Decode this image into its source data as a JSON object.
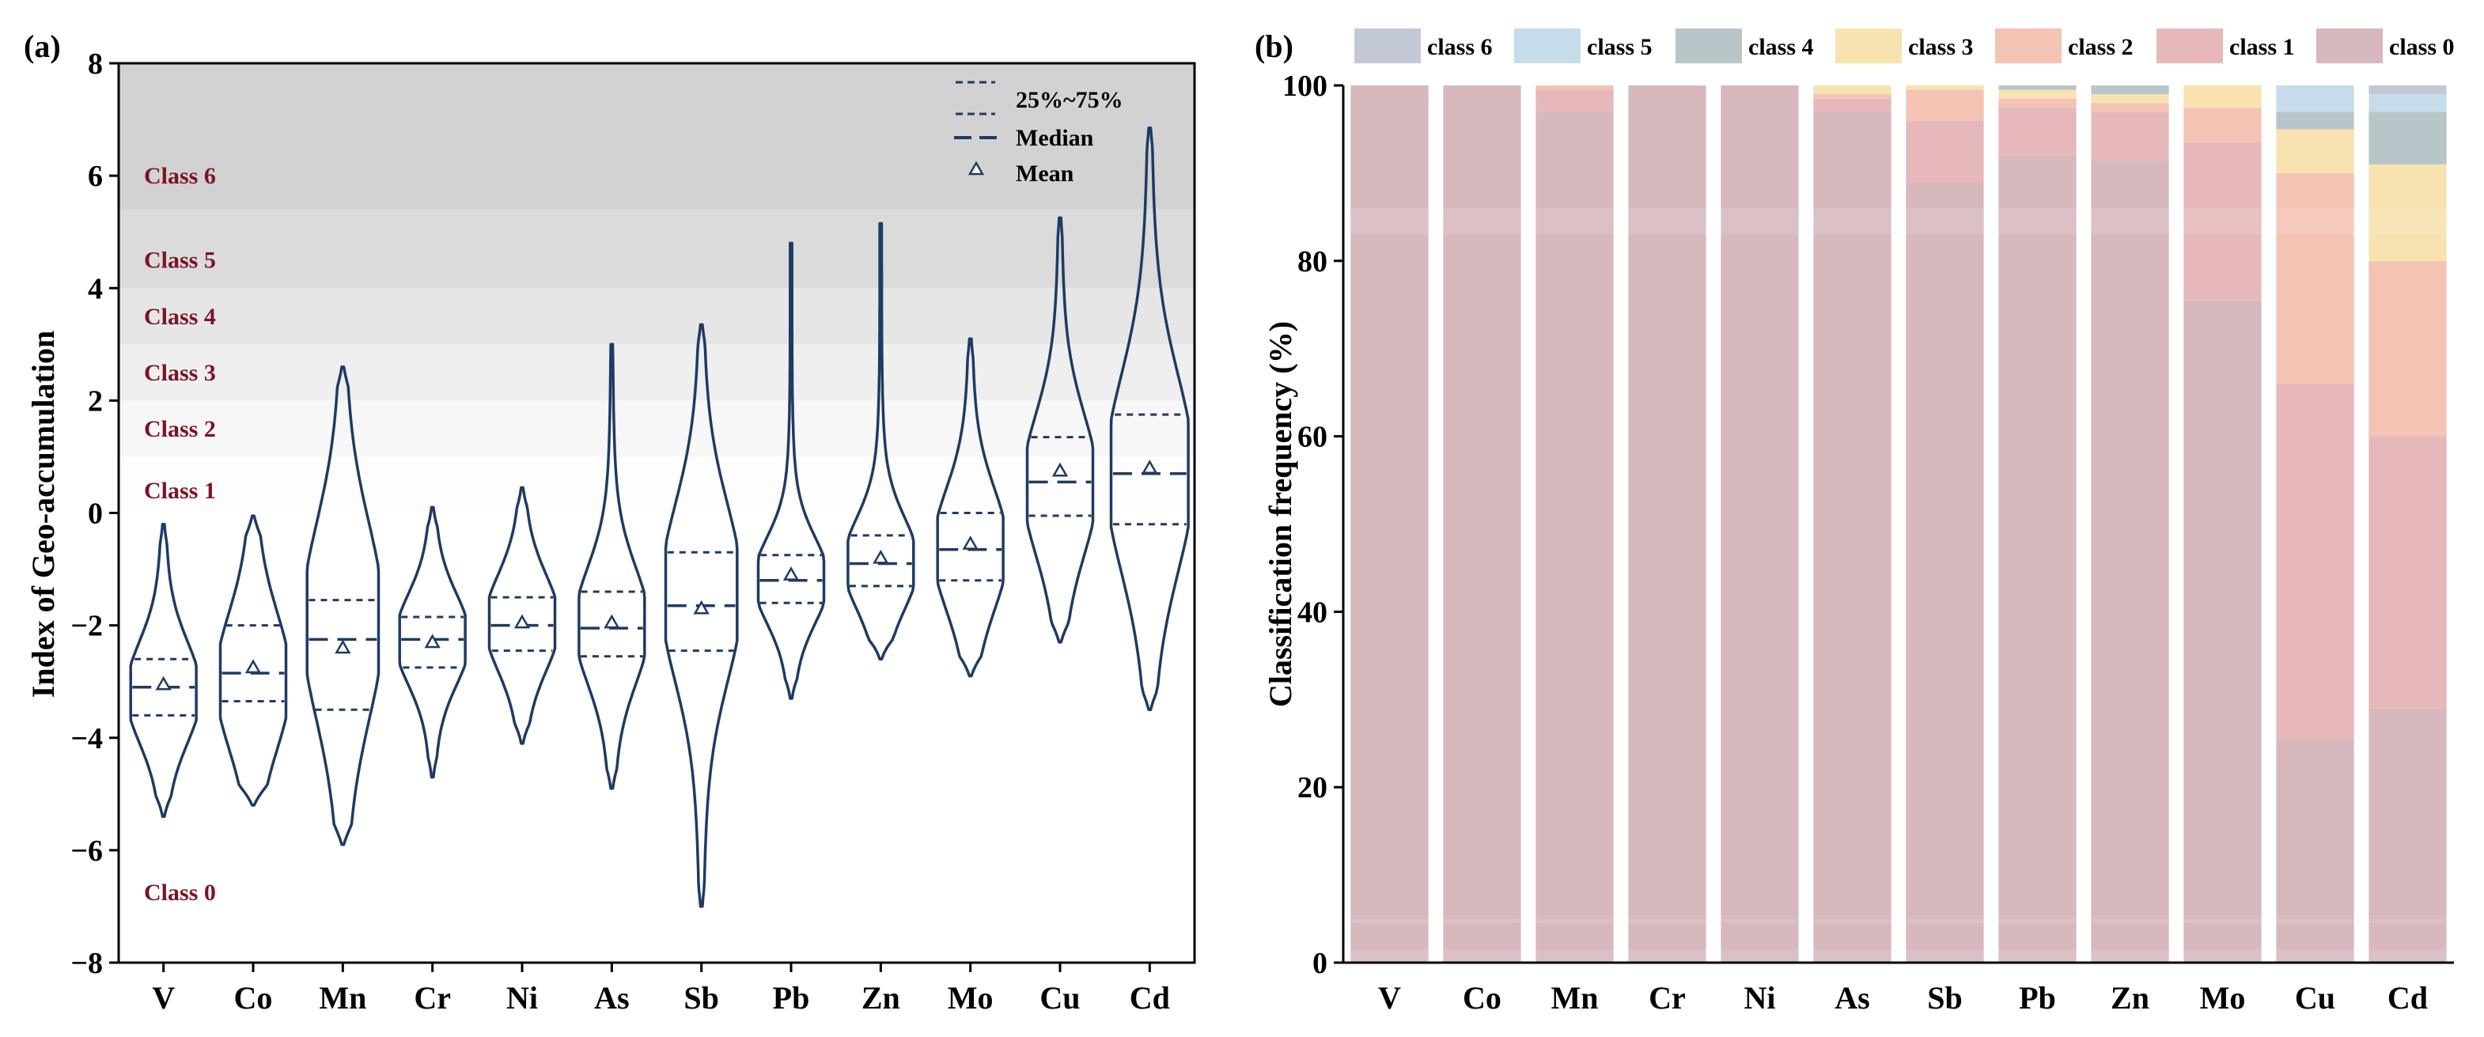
{
  "chart_data": [
    {
      "panel": "(a)",
      "type": "violin",
      "ylabel": "Index of Geo-accumulation",
      "ylim": [
        -8,
        8
      ],
      "yticks": [
        "−8",
        "−6",
        "−4",
        "−2",
        "0",
        "2",
        "4",
        "6",
        "8"
      ],
      "ytick_values": [
        -8,
        -6,
        -4,
        -2,
        0,
        2,
        4,
        6,
        8
      ],
      "legend": {
        "quartile": "25%~75%",
        "median": "Median",
        "mean": "Mean"
      },
      "bands": [
        {
          "label": "Class 0",
          "from": -8,
          "to": 0,
          "label_at": -6.75,
          "color": "#ffffff"
        },
        {
          "label": "Class 1",
          "from": 0,
          "to": 1,
          "label_at": 0.4,
          "color": "#fdfdfd"
        },
        {
          "label": "Class 2",
          "from": 1,
          "to": 2,
          "label_at": 1.5,
          "color": "#f7f7f7"
        },
        {
          "label": "Class 3",
          "from": 2,
          "to": 3,
          "label_at": 2.5,
          "color": "#efefef"
        },
        {
          "label": "Class 4",
          "from": 3,
          "to": 4,
          "label_at": 3.5,
          "color": "#e6e6e6"
        },
        {
          "label": "Class 5",
          "from": 4,
          "to": 5.4,
          "label_at": 4.5,
          "color": "#dbdbdb"
        },
        {
          "label": "Class 6",
          "from": 5.4,
          "to": 8,
          "label_at": 6.0,
          "color": "#d2d2d2"
        }
      ],
      "categories": [
        "V",
        "Co",
        "Mn",
        "Cr",
        "Ni",
        "As",
        "Sb",
        "Pb",
        "Zn",
        "Mo",
        "Cu",
        "Cd"
      ],
      "series": [
        {
          "name": "V",
          "min": -5.4,
          "max": -0.2,
          "q1": -3.6,
          "median": -3.1,
          "q3": -2.6,
          "mean": -3.05,
          "mode": -3.2,
          "width": 0.55
        },
        {
          "name": "Co",
          "min": -5.2,
          "max": -0.05,
          "q1": -3.35,
          "median": -2.85,
          "q3": -2.0,
          "mean": -2.75,
          "mode": -3.0,
          "width": 0.55
        },
        {
          "name": "Mn",
          "min": -5.9,
          "max": 2.6,
          "q1": -3.5,
          "median": -2.25,
          "q3": -1.55,
          "mean": -2.4,
          "mode": -1.9,
          "width": 0.6
        },
        {
          "name": "Cr",
          "min": -4.7,
          "max": 0.1,
          "q1": -2.75,
          "median": -2.25,
          "q3": -1.85,
          "mean": -2.3,
          "mode": -2.25,
          "width": 0.55
        },
        {
          "name": "Ni",
          "min": -4.1,
          "max": 0.45,
          "q1": -2.45,
          "median": -2.0,
          "q3": -1.5,
          "mean": -1.95,
          "mode": -1.95,
          "width": 0.55
        },
        {
          "name": "As",
          "min": -4.9,
          "max": 3.0,
          "q1": -2.55,
          "median": -2.05,
          "q3": -1.4,
          "mean": -1.95,
          "mode": -2.0,
          "width": 0.55
        },
        {
          "name": "Sb",
          "min": -7.0,
          "max": 3.35,
          "q1": -2.45,
          "median": -1.65,
          "q3": -0.7,
          "mean": -1.7,
          "mode": -1.4,
          "width": 0.6
        },
        {
          "name": "Pb",
          "min": -3.3,
          "max": 4.8,
          "q1": -1.6,
          "median": -1.2,
          "q3": -0.75,
          "mean": -1.1,
          "mode": -1.2,
          "width": 0.55
        },
        {
          "name": "Zn",
          "min": -2.6,
          "max": 5.15,
          "q1": -1.3,
          "median": -0.9,
          "q3": -0.4,
          "mean": -0.8,
          "mode": -0.9,
          "width": 0.55
        },
        {
          "name": "Mo",
          "min": -2.9,
          "max": 3.1,
          "q1": -1.2,
          "median": -0.65,
          "q3": 0.0,
          "mean": -0.55,
          "mode": -0.65,
          "width": 0.55
        },
        {
          "name": "Cu",
          "min": -2.3,
          "max": 5.25,
          "q1": -0.05,
          "median": 0.55,
          "q3": 1.35,
          "mean": 0.75,
          "mode": 0.5,
          "width": 0.55
        },
        {
          "name": "Cd",
          "min": -3.5,
          "max": 6.85,
          "q1": -0.2,
          "median": 0.7,
          "q3": 1.75,
          "mean": 0.8,
          "mode": 0.7,
          "width": 0.65
        }
      ]
    },
    {
      "panel": "(b)",
      "type": "stacked_bar",
      "ylabel": "Classification frequency (%)",
      "ylim": [
        0,
        100
      ],
      "yticks": [
        "0",
        "20",
        "40",
        "60",
        "80",
        "100"
      ],
      "ytick_values": [
        0,
        20,
        40,
        60,
        80,
        100
      ],
      "categories": [
        "V",
        "Co",
        "Mn",
        "Cr",
        "Ni",
        "As",
        "Sb",
        "Pb",
        "Zn",
        "Mo",
        "Cu",
        "Cd"
      ],
      "legend": [
        "class 6",
        "class 5",
        "class 4",
        "class 3",
        "class 2",
        "class 1",
        "class 0"
      ],
      "series": [
        {
          "name": "class 0",
          "color": "#d6b8bd",
          "values": [
            100,
            100,
            97,
            100,
            100,
            97,
            89,
            92,
            91.5,
            75.5,
            25.5,
            29
          ]
        },
        {
          "name": "class 1",
          "color": "#e6b8bb",
          "values": [
            0,
            0,
            2.5,
            0,
            0,
            1.5,
            7,
            5.5,
            5.5,
            18,
            40.5,
            31
          ]
        },
        {
          "name": "class 2",
          "color": "#f4c3b4",
          "values": [
            0,
            0,
            0.5,
            0,
            0,
            0.5,
            3.5,
            1,
            1,
            4,
            24,
            20
          ]
        },
        {
          "name": "class 3",
          "color": "#f8e3b0",
          "values": [
            0,
            0,
            0,
            0,
            0,
            1,
            0.5,
            1,
            1,
            2.5,
            5,
            11
          ]
        },
        {
          "name": "class 4",
          "color": "#b9c6c9",
          "values": [
            0,
            0,
            0,
            0,
            0,
            0,
            0,
            0.5,
            1,
            0,
            2,
            6
          ]
        },
        {
          "name": "class 5",
          "color": "#c6dcea",
          "values": [
            0,
            0,
            0,
            0,
            0,
            0,
            0,
            0,
            0,
            0,
            3,
            2
          ]
        },
        {
          "name": "class 6",
          "color": "#c2c8d6",
          "values": [
            0,
            0,
            0,
            0,
            0,
            0,
            0,
            0,
            0,
            0,
            0,
            1
          ]
        }
      ]
    }
  ]
}
